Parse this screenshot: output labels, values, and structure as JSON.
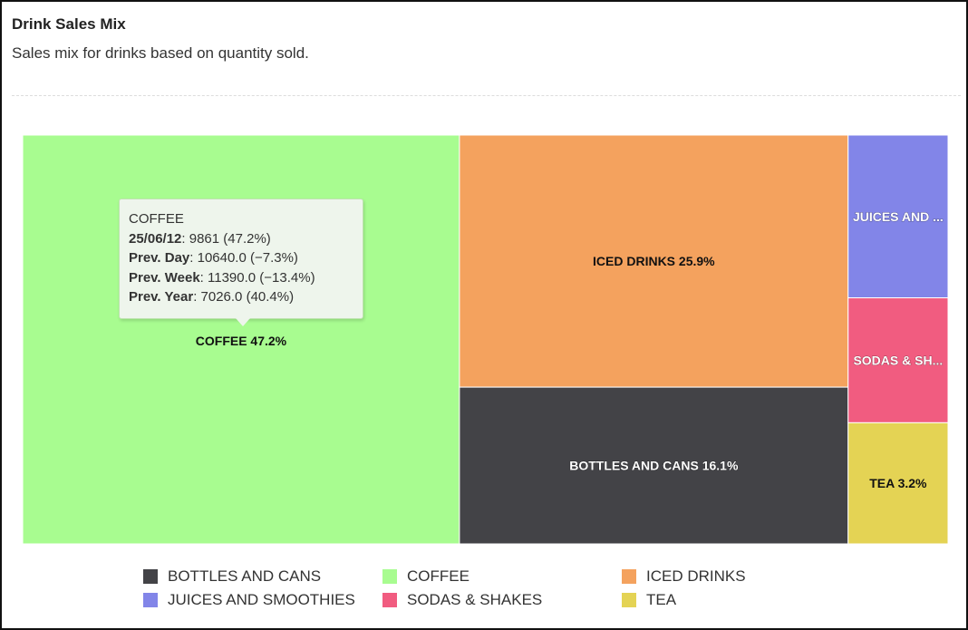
{
  "header": {
    "title": "Drink Sales Mix",
    "subtitle": "Sales mix for drinks based on quantity sold."
  },
  "tooltip": {
    "name": "COFFEE",
    "rows": [
      {
        "label": "25/06/12",
        "value": ": 9861 (47.2%)"
      },
      {
        "label": "Prev. Day",
        "value": ": 10640.0 (−7.3%)"
      },
      {
        "label": "Prev. Week",
        "value": ": 11390.0 (−13.4%)"
      },
      {
        "label": "Prev. Year",
        "value": ": 7026.0 (40.4%)"
      }
    ]
  },
  "chart_data": {
    "type": "treemap",
    "series": [
      {
        "name": "COFFEE",
        "percent": 47.2,
        "label": "COFFEE 47.2%",
        "color": "#a8fc90",
        "text_color": "#111111"
      },
      {
        "name": "ICED DRINKS",
        "percent": 25.9,
        "label": "ICED DRINKS 25.9%",
        "color": "#f4a25e",
        "text_color": "#111111"
      },
      {
        "name": "BOTTLES AND CANS",
        "percent": 16.1,
        "label": "BOTTLES AND CANS 16.1%",
        "color": "#434347",
        "text_color": "#ffffff"
      },
      {
        "name": "JUICES AND SMOOTHIES",
        "percent": 4.3,
        "label": "JUICES AND ...",
        "color": "#8285e8",
        "text_color": "#ffffff"
      },
      {
        "name": "SODAS & SHAKES",
        "percent": 3.3,
        "label": "SODAS & SH...",
        "color": "#f15c80",
        "text_color": "#ffffff"
      },
      {
        "name": "TEA",
        "percent": 3.2,
        "label": "TEA 3.2%",
        "color": "#e4d354",
        "text_color": "#111111"
      }
    ],
    "legend": [
      {
        "name": "BOTTLES AND CANS",
        "color": "#434347"
      },
      {
        "name": "COFFEE",
        "color": "#a8fc90"
      },
      {
        "name": "ICED DRINKS",
        "color": "#f4a25e"
      },
      {
        "name": "JUICES AND SMOOTHIES",
        "color": "#8285e8"
      },
      {
        "name": "SODAS & SHAKES",
        "color": "#f15c80"
      },
      {
        "name": "TEA",
        "color": "#e4d354"
      }
    ],
    "legend_position": "bottom"
  }
}
